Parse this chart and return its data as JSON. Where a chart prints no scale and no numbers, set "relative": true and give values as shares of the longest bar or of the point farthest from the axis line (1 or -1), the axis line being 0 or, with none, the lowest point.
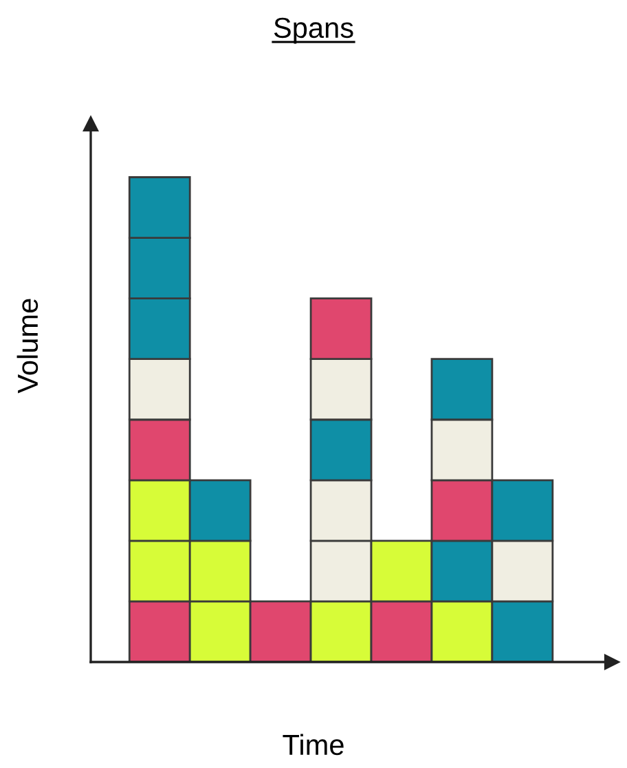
{
  "chart_data": {
    "type": "bar",
    "title": "Spans",
    "xlabel": "Time",
    "ylabel": "Volume",
    "relative": true,
    "stacked": true,
    "categories": [
      null,
      null,
      null,
      null,
      null,
      null,
      null
    ],
    "series": [
      {
        "colors": [
          "#e0476e",
          "#d7fc38",
          "#e0476e",
          "#d7fc38",
          "#e0476e",
          "#d7fc38",
          "#0f8fa6"
        ],
        "values": [
          0.125,
          0.125,
          0.125,
          0.125,
          0.125,
          0.125,
          0.125
        ]
      },
      {
        "colors": [
          "#d7fc38",
          "#d7fc38",
          null,
          "#f0eee2",
          "#d7fc38",
          "#0f8fa6",
          "#f0eee2"
        ],
        "values": [
          0.125,
          0.125,
          null,
          0.125,
          0.125,
          0.125,
          0.125
        ]
      },
      {
        "colors": [
          "#d7fc38",
          "#0f8fa6",
          null,
          "#f0eee2",
          null,
          "#e0476e",
          "#0f8fa6"
        ],
        "values": [
          0.125,
          0.125,
          null,
          0.125,
          null,
          0.125,
          0.125
        ]
      },
      {
        "colors": [
          "#e0476e",
          null,
          null,
          "#0f8fa6",
          null,
          "#f0eee2",
          null
        ],
        "values": [
          0.125,
          null,
          null,
          0.125,
          null,
          0.125,
          null
        ]
      },
      {
        "colors": [
          "#f0eee2",
          null,
          null,
          "#f0eee2",
          null,
          "#0f8fa6",
          null
        ],
        "values": [
          0.125,
          null,
          null,
          0.125,
          null,
          0.125,
          null
        ]
      },
      {
        "colors": [
          "#0f8fa6",
          null,
          null,
          "#e0476e",
          null,
          null,
          null
        ],
        "values": [
          0.125,
          null,
          null,
          0.125,
          null,
          null,
          null
        ]
      },
      {
        "colors": [
          "#0f8fa6",
          null,
          null,
          null,
          null,
          null,
          null
        ],
        "values": [
          0.125,
          null,
          null,
          null,
          null,
          null,
          null
        ]
      },
      {
        "colors": [
          "#0f8fa6",
          null,
          null,
          null,
          null,
          null,
          null
        ],
        "values": [
          0.125,
          null,
          null,
          null,
          null,
          null,
          null
        ]
      }
    ],
    "grid": false,
    "legend": false
  }
}
